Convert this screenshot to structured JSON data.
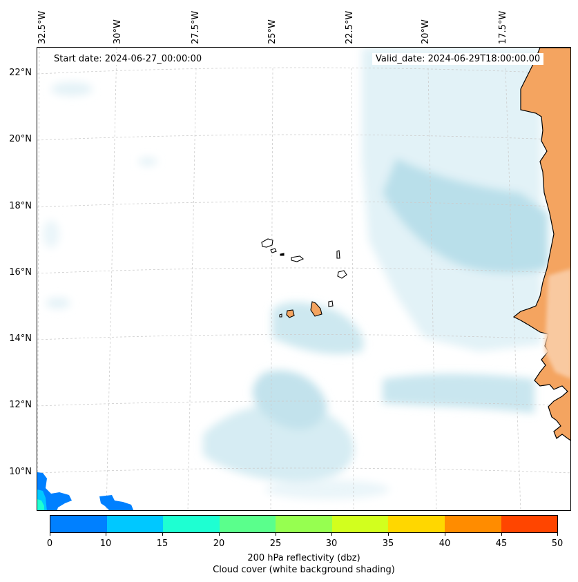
{
  "map": {
    "start_date": "Start date: 2024-06-27_00:00:00",
    "valid_date": "Valid_date: 2024-06-29T18:00:00.00",
    "longitude_labels": [
      "32.5°W",
      "30°W",
      "27.5°W",
      "25°W",
      "22.5°W",
      "20°W",
      "17.5°W"
    ],
    "latitude_labels": [
      "22°N",
      "20°N",
      "18°N",
      "16°N",
      "14°N",
      "12°N",
      "10°N"
    ],
    "land_color": "#f4a460",
    "cloud_color": "#add8e6",
    "regions": [
      "West Africa coast",
      "Cape Verde islands"
    ]
  },
  "colorbar": {
    "ticks": [
      "0",
      "10",
      "15",
      "20",
      "25",
      "30",
      "35",
      "40",
      "45",
      "50"
    ],
    "colors": [
      "#0080ff",
      "#00c8ff",
      "#1effd2",
      "#5aff8c",
      "#96ff50",
      "#d2ff1e",
      "#ffd700",
      "#ff8c00",
      "#ff4500"
    ],
    "label_line1": "200 hPa reflectivity (dbz)",
    "label_line2": "Cloud cover (white background shading)"
  }
}
